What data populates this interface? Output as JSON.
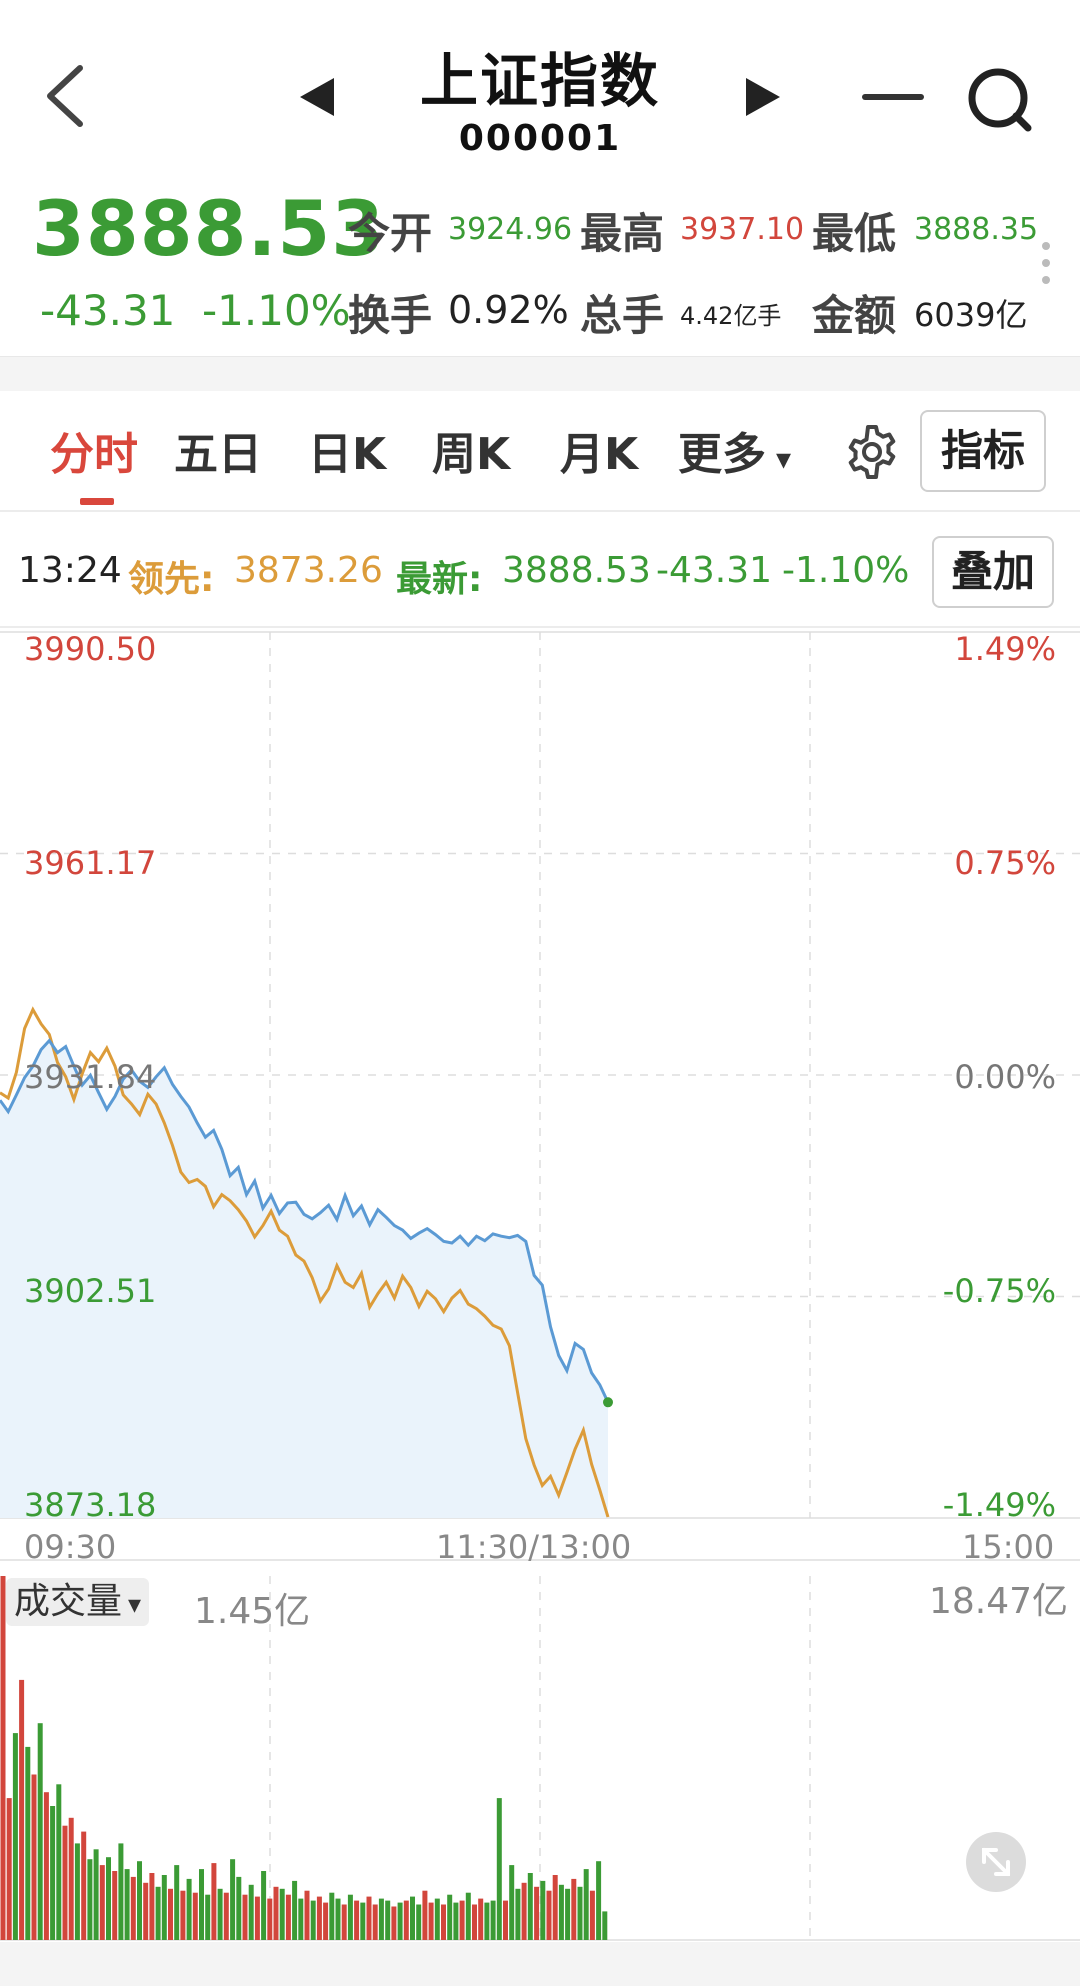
{
  "header": {
    "title": "上证指数",
    "code": "000001"
  },
  "quote": {
    "price": "3888.53",
    "change": "-43.31",
    "change_pct": "-1.10%",
    "open_label": "今开",
    "open": "3924.96",
    "high_label": "最高",
    "high": "3937.10",
    "low_label": "最低",
    "low": "3888.35",
    "turnover_label": "换手",
    "turnover": "0.92%",
    "volume_label": "总手",
    "volume": "4.42亿手",
    "amount_label": "金额",
    "amount": "6039亿"
  },
  "tabs": [
    "分时",
    "五日",
    "日K",
    "周K",
    "月K",
    "更多"
  ],
  "tabs_more_suffix": "▾",
  "indicator_button": "指标",
  "info_line": {
    "time": "13:24",
    "lead_label": "领先:",
    "lead_value": "3873.26",
    "latest_label": "最新:",
    "latest_value": "3888.53",
    "latest_change": "-43.31",
    "latest_pct": "-1.10%",
    "overlay_button": "叠加"
  },
  "y_axis_left": [
    "3990.50",
    "3961.17",
    "3931.84",
    "3902.51",
    "3873.18"
  ],
  "y_axis_right": [
    "1.49%",
    "0.75%",
    "0.00%",
    "-0.75%",
    "-1.49%"
  ],
  "x_axis": [
    "09:30",
    "11:30/13:00",
    "15:00"
  ],
  "volume_panel": {
    "selector_label": "成交量",
    "selector_caret": "▾",
    "current": "1.45亿",
    "max": "18.47亿"
  },
  "colors": {
    "up": "#d2463c",
    "down": "#3b9b35",
    "price_line": "#5b9ad4",
    "lead_line": "#dc9c3a",
    "area_fill": "#eaf3fb",
    "grid": "#dddddd"
  },
  "icons": [
    "back-icon",
    "prev-icon",
    "next-icon",
    "minimize-icon",
    "search-icon",
    "more-vertical-icon",
    "gear-icon",
    "expand-icon"
  ],
  "chart_data": {
    "type": "line",
    "x_range": [
      "09:30",
      "15:00"
    ],
    "ylim": [
      3873.18,
      3990.5
    ],
    "base": 3931.84,
    "series": [
      {
        "values": [
          3928.5,
          3927.0,
          3929.2,
          3931.5,
          3933.0,
          3935.2,
          3936.4,
          3934.8,
          3935.6,
          3933.0,
          3930.5,
          3931.8,
          3929.5,
          3927.3,
          3929.0,
          3931.3,
          3932.5,
          3931.0,
          3930.2,
          3931.6,
          3932.8,
          3930.6,
          3929.0,
          3927.6,
          3925.5,
          3923.6,
          3924.5,
          3922.0,
          3918.5,
          3919.6,
          3916.0,
          3917.8,
          3914.2,
          3915.9,
          3913.5,
          3914.9,
          3915.0,
          3913.4,
          3912.8,
          3913.6,
          3914.6,
          3912.7,
          3915.9,
          3913.2,
          3914.5,
          3912.0,
          3914.0,
          3913.0,
          3911.9,
          3911.3,
          3910.2,
          3910.9,
          3911.5,
          3910.7,
          3909.8,
          3909.6,
          3910.5,
          3909.3,
          3910.5,
          3909.9,
          3910.8,
          3910.5,
          3910.3,
          3910.6,
          3909.8,
          3905.3,
          3904.0,
          3898.5,
          3894.7,
          3892.7,
          3896.3,
          3895.5,
          3892.4,
          3890.8,
          3888.5
        ],
        "color": "#5b9ad4"
      },
      {
        "values": [
          3929.5,
          3928.8,
          3932.2,
          3938.0,
          3940.5,
          3938.6,
          3937.2,
          3933.5,
          3931.6,
          3928.6,
          3932.0,
          3934.8,
          3933.6,
          3935.4,
          3933.0,
          3929.2,
          3928.0,
          3926.6,
          3929.3,
          3928.0,
          3925.5,
          3922.5,
          3919.0,
          3917.6,
          3918.0,
          3917.1,
          3914.4,
          3916.0,
          3915.2,
          3914.0,
          3912.5,
          3910.4,
          3911.9,
          3913.8,
          3911.3,
          3910.5,
          3908.0,
          3907.2,
          3905.0,
          3901.9,
          3903.5,
          3906.6,
          3904.4,
          3903.7,
          3905.6,
          3901.1,
          3902.9,
          3904.4,
          3902.3,
          3905.2,
          3903.7,
          3901.2,
          3903.2,
          3902.2,
          3900.5,
          3902.3,
          3903.3,
          3901.5,
          3900.9,
          3899.9,
          3898.7,
          3898.2,
          3896.0,
          3889.8,
          3883.7,
          3880.2,
          3877.5,
          3878.7,
          3876.2,
          3879.2,
          3882.3,
          3884.8,
          3880.3,
          3876.9,
          3873.3
        ],
        "color": "#dc9c3a"
      }
    ],
    "volume": {
      "ylim": [
        0,
        18.47
      ],
      "values": [
        18.47,
        7.2,
        10.5,
        13.2,
        9.8,
        8.4,
        11.0,
        7.5,
        6.8,
        7.9,
        5.8,
        6.2,
        4.9,
        5.5,
        4.1,
        4.6,
        3.8,
        4.2,
        3.5,
        4.9,
        3.6,
        3.2,
        4.0,
        2.9,
        3.4,
        2.7,
        3.3,
        2.6,
        3.8,
        2.5,
        3.1,
        2.4,
        3.6,
        2.3,
        3.9,
        2.6,
        2.4,
        4.1,
        3.2,
        2.3,
        2.8,
        2.2,
        3.5,
        2.1,
        2.7,
        2.6,
        2.3,
        3.0,
        2.1,
        2.5,
        2.0,
        2.2,
        1.9,
        2.4,
        2.1,
        1.8,
        2.3,
        2.0,
        1.9,
        2.2,
        1.8,
        2.1,
        2.0,
        1.7,
        1.9,
        2.0,
        2.2,
        1.8,
        2.5,
        1.9,
        2.1,
        1.8,
        2.3,
        1.9,
        2.0,
        2.4,
        1.8,
        2.1,
        1.9,
        2.0,
        7.2,
        2.0,
        3.8,
        2.6,
        2.9,
        3.4,
        2.7,
        3.0,
        2.5,
        3.3,
        2.8,
        2.6,
        3.1,
        2.7,
        3.6,
        2.5,
        4.0,
        1.45
      ],
      "up": [
        1,
        1,
        0,
        1,
        0,
        1,
        0,
        1,
        0,
        0,
        1,
        1,
        0,
        1,
        0,
        0,
        1,
        0,
        1,
        0,
        0,
        1,
        0,
        1,
        1,
        0,
        0,
        1,
        0,
        1,
        0,
        1,
        0,
        0,
        1,
        0,
        1,
        0,
        0,
        1,
        0,
        1,
        0,
        1,
        1,
        0,
        1,
        0,
        0,
        1,
        0,
        1,
        1,
        0,
        0,
        1,
        0,
        1,
        0,
        1,
        1,
        0,
        0,
        1,
        0,
        1,
        0,
        0,
        1,
        1,
        0,
        1,
        0,
        0,
        1,
        0,
        1,
        1,
        0,
        0,
        0,
        1,
        0,
        0,
        1,
        0,
        1,
        0,
        1,
        1,
        0,
        0,
        1,
        0,
        0,
        1,
        0,
        0
      ]
    }
  }
}
